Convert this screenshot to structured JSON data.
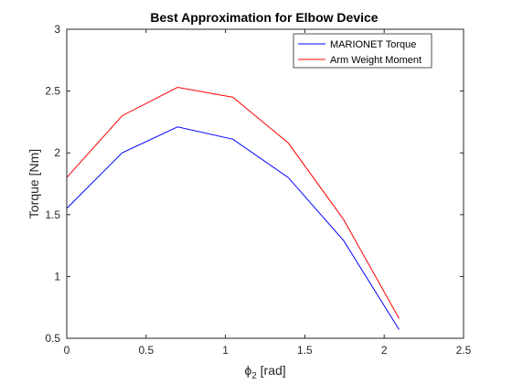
{
  "chart_data": {
    "type": "line",
    "title": "Best Approximation for Elbow Device",
    "xlabel": {
      "symbol": "ϕ",
      "subscript": "2",
      "unit": " [rad]"
    },
    "ylabel": "Torque [Nm]",
    "xlim": [
      0,
      2.5
    ],
    "ylim": [
      0.5,
      3
    ],
    "xticks": [
      0,
      0.5,
      1,
      1.5,
      2,
      2.5
    ],
    "xtick_labels": [
      "0",
      "0.5",
      "1",
      "1.5",
      "2",
      "2.5"
    ],
    "yticks": [
      0.5,
      1,
      1.5,
      2,
      2.5,
      3
    ],
    "ytick_labels": [
      "0.5",
      "1",
      "1.5",
      "2",
      "2.5",
      "3"
    ],
    "grid": false,
    "legend_position": "top-right",
    "series": [
      {
        "name": "MARIONET Torque",
        "color": "#0000ff",
        "x": [
          0,
          0.349,
          0.698,
          1.047,
          1.396,
          1.745,
          2.094
        ],
        "y": [
          1.55,
          2.0,
          2.21,
          2.11,
          1.8,
          1.29,
          0.57
        ]
      },
      {
        "name": "Arm Weight Moment",
        "color": "#ff0000",
        "x": [
          0,
          0.349,
          0.698,
          1.047,
          1.396,
          1.745,
          2.094
        ],
        "y": [
          1.8,
          2.3,
          2.53,
          2.45,
          2.08,
          1.46,
          0.66
        ]
      }
    ]
  }
}
